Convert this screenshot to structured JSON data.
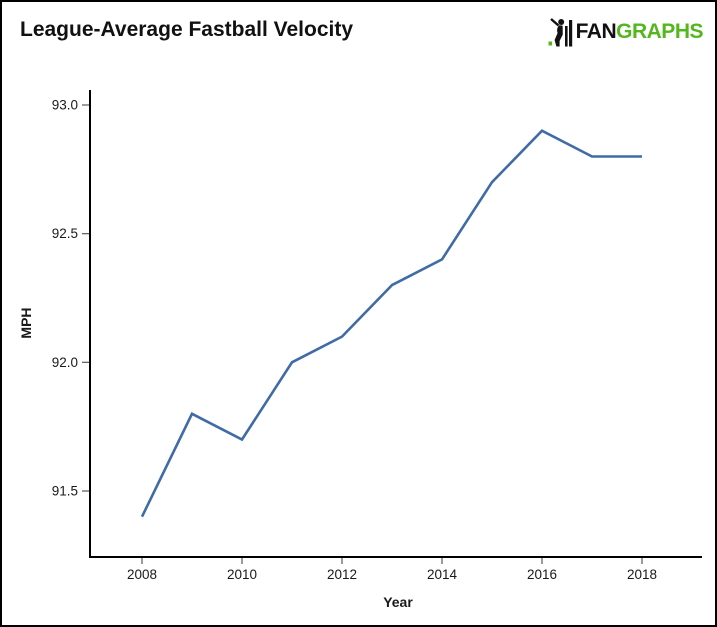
{
  "header": {
    "title": "League-Average Fastball Velocity",
    "logo": {
      "fan": "FAN",
      "graphs": "GRAPHS"
    }
  },
  "colors": {
    "line": "#3f6ba6",
    "logo_green": "#55b71f",
    "axis": "#000000",
    "tick": "#666666",
    "tick_text": "#1a1a1a"
  },
  "chart_data": {
    "type": "line",
    "title": "League-Average Fastball Velocity",
    "xlabel": "Year",
    "ylabel": "MPH",
    "x": [
      2008,
      2009,
      2010,
      2011,
      2012,
      2013,
      2014,
      2015,
      2016,
      2017,
      2018
    ],
    "values": [
      91.4,
      91.8,
      91.7,
      92.0,
      92.1,
      92.3,
      92.4,
      92.7,
      92.9,
      92.8,
      92.8
    ],
    "x_tick_labels": [
      "2008",
      "2010",
      "2012",
      "2014",
      "2016",
      "2018"
    ],
    "y_tick_labels": [
      "91.5",
      "92.0",
      "92.5",
      "93.0"
    ],
    "ylim": [
      91.24,
      93.06
    ],
    "xlim": [
      2006.9,
      2019.2
    ],
    "grid": false,
    "legend": "none"
  }
}
